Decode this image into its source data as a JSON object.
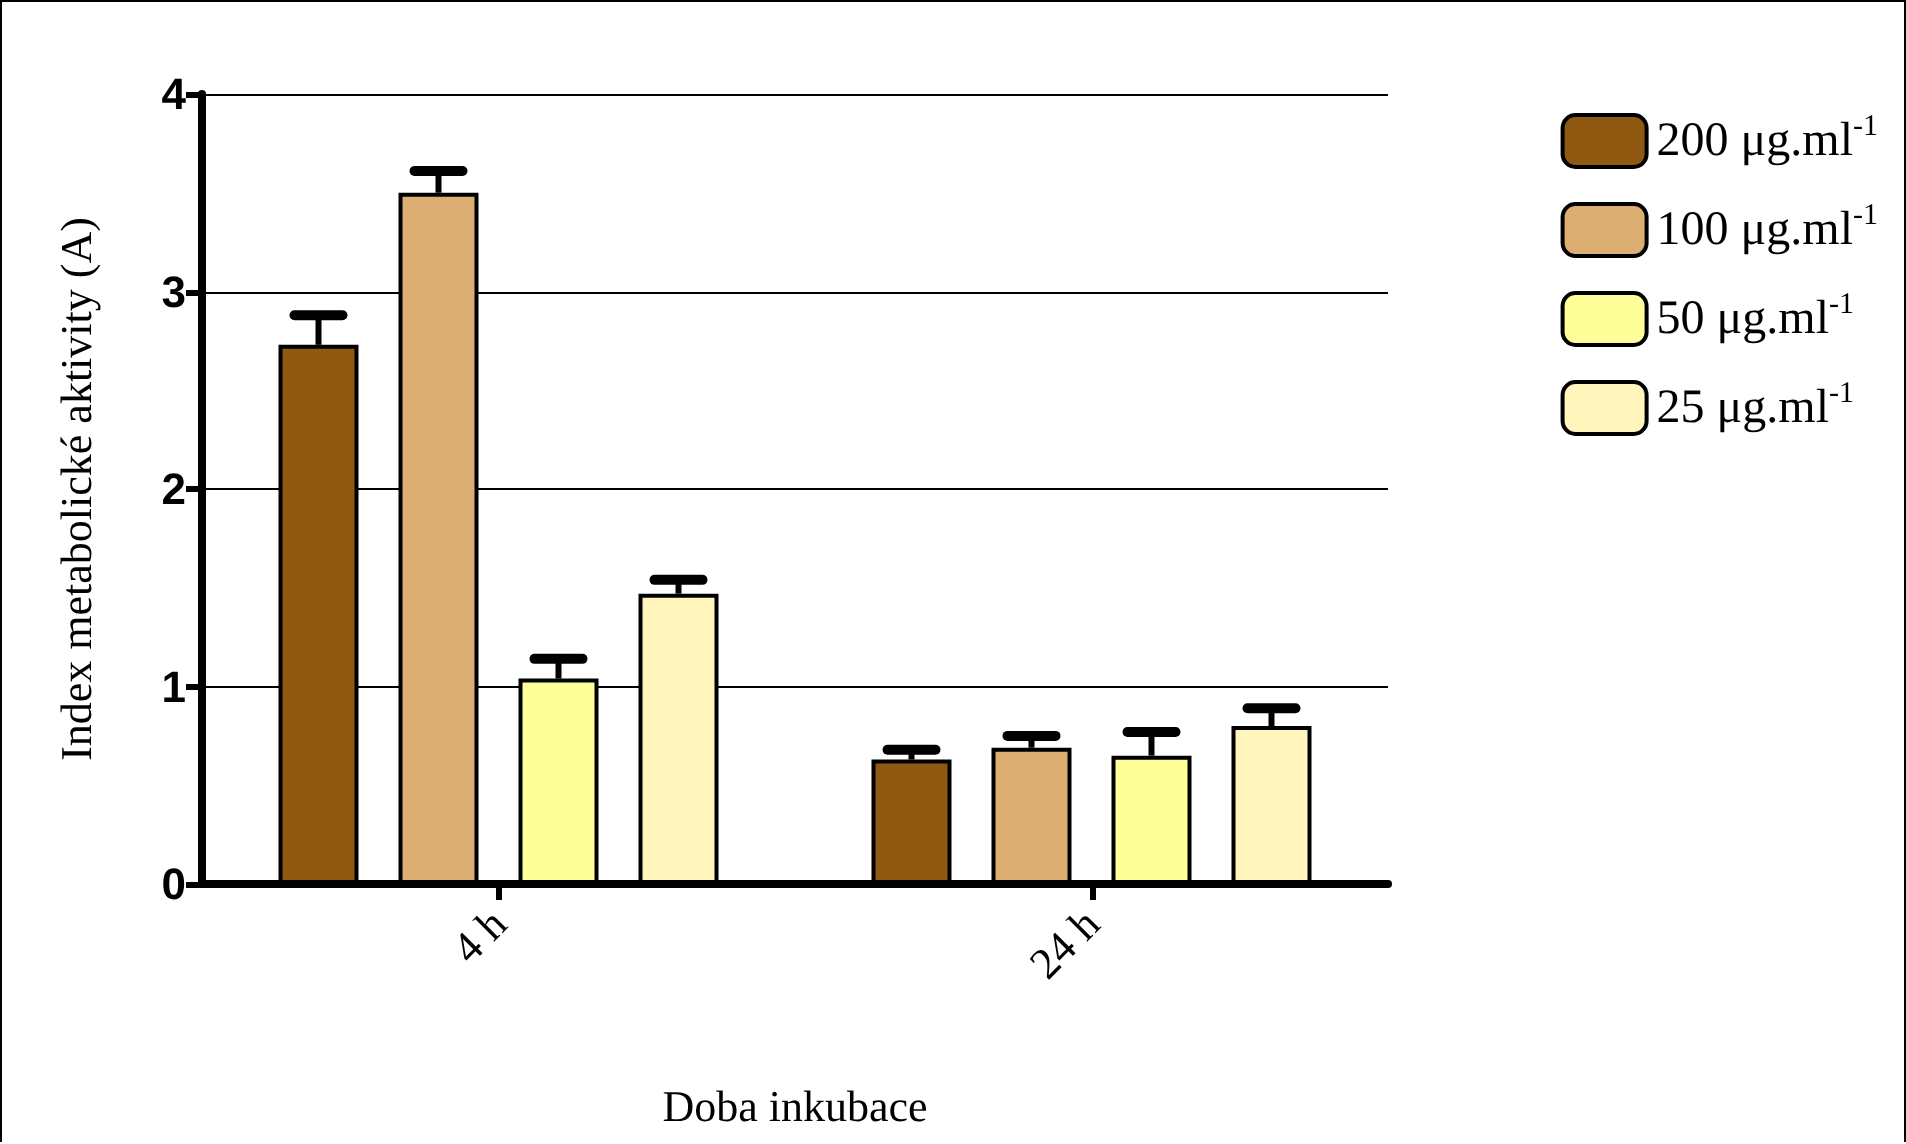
{
  "chart_data": {
    "type": "bar",
    "xlabel": "Doba inkubace",
    "ylabel": "Index metabolické aktivity (A)",
    "categories": [
      "4 h",
      "24 h"
    ],
    "series": [
      {
        "name": "200 μg.ml$^{-1}$",
        "color": "#8f5912",
        "values": [
          2.73,
          0.63
        ],
        "errors": [
          [
            2.73,
            2.88
          ],
          [
            0.63,
            0.68
          ]
        ]
      },
      {
        "name": "100 μg.ml$^{-1}$",
        "color": "#dcae72",
        "values": [
          3.5,
          0.69
        ],
        "errors": [
          [
            3.5,
            3.61
          ],
          [
            0.69,
            0.75
          ]
        ]
      },
      {
        "name": "50 μg.ml$^{-1}$",
        "color": "#ffff99",
        "values": [
          1.04,
          0.65
        ],
        "errors": [
          [
            1.04,
            1.14
          ],
          [
            0.65,
            0.77
          ]
        ]
      },
      {
        "name": "25 μg.ml$^{-1}$",
        "color": "#fff5bd",
        "values": [
          1.47,
          0.8
        ],
        "errors": [
          [
            1.47,
            1.54
          ],
          [
            0.8,
            0.89
          ]
        ]
      }
    ],
    "ylim": [
      0,
      4
    ],
    "yticks": [
      0,
      1,
      2,
      3,
      4
    ],
    "grid": "y",
    "legend": "right"
  }
}
